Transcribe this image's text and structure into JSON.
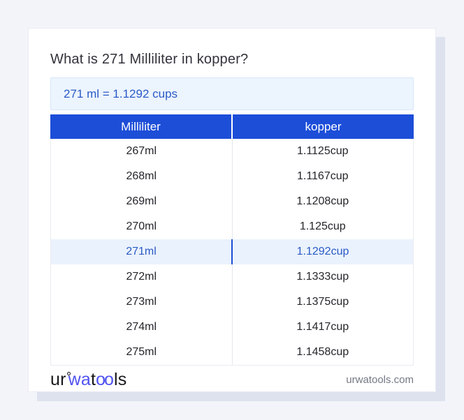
{
  "title": "What is 271 Milliliter in kopper?",
  "conversion": {
    "text": "271 ml = 1.1292 cups"
  },
  "table": {
    "headers": [
      "Milliliter",
      "kopper"
    ],
    "rows": [
      [
        "267ml",
        "1.1125cup"
      ],
      [
        "268ml",
        "1.1167cup"
      ],
      [
        "269ml",
        "1.1208cup"
      ],
      [
        "270ml",
        "1.125cup"
      ],
      [
        "271ml",
        "1.1292cup"
      ],
      [
        "272ml",
        "1.1333cup"
      ],
      [
        "273ml",
        "1.1375cup"
      ],
      [
        "274ml",
        "1.1417cup"
      ],
      [
        "275ml",
        "1.1458cup"
      ]
    ],
    "highlighted_row_index": 4
  },
  "footer": {
    "logo": {
      "segments": [
        {
          "text": "ur"
        },
        {
          "text": "wa"
        },
        {
          "text": "t"
        },
        {
          "text": "oo"
        },
        {
          "text": "ls"
        }
      ],
      "ring_icon": "ring"
    },
    "domain": "urwatools.com"
  },
  "colors": {
    "page_bg": "#f3f4f9",
    "card_shadow": "#dde2ee",
    "header_blue": "#1d4ed8",
    "highlight_row_bg": "#eaf2fd",
    "link_blue": "#2a5ac6",
    "result_box_bg": "#ecf4fe",
    "result_box_border": "#d7e5f8",
    "logo_blue": "#5053ef",
    "logo_dark": "#18181b"
  }
}
